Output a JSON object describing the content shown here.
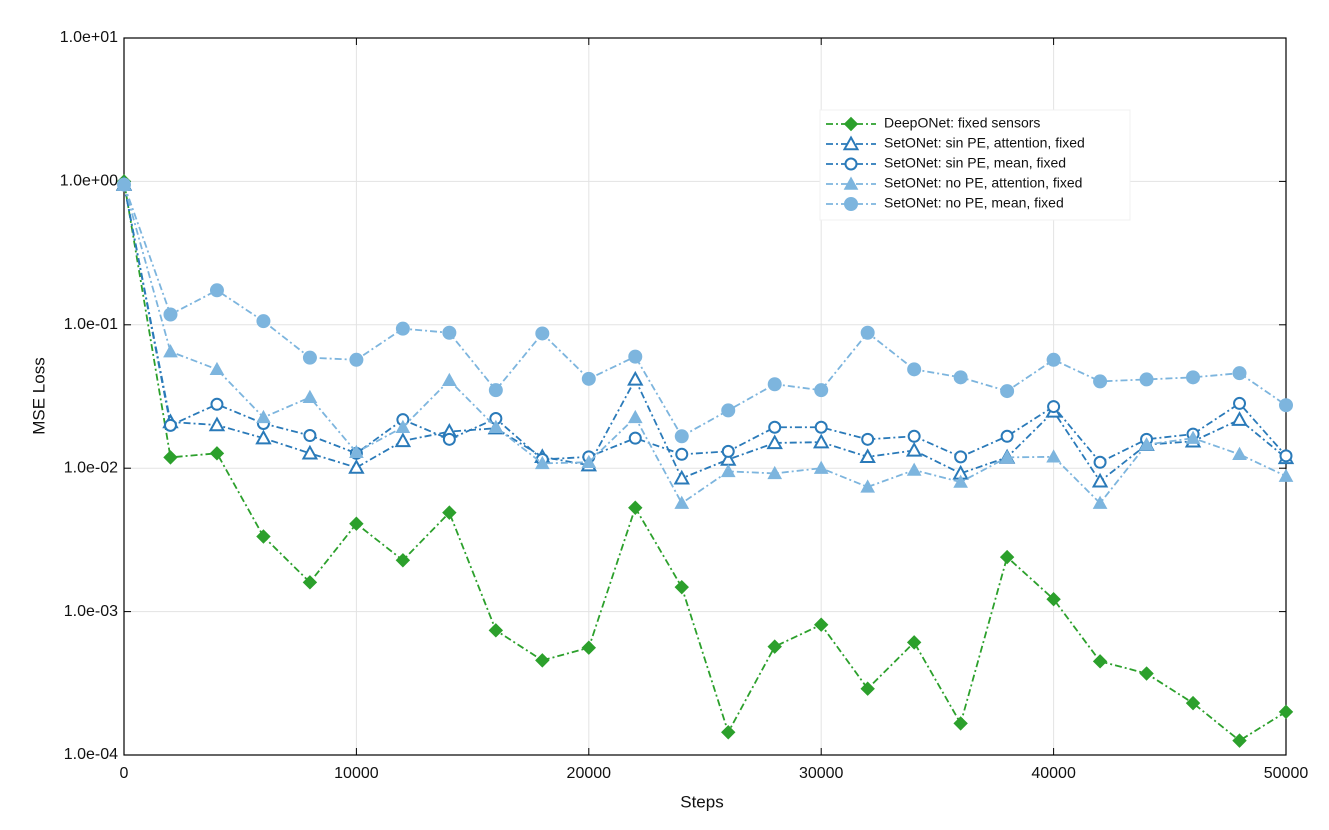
{
  "chart_data": {
    "type": "line",
    "xlabel": "Steps",
    "ylabel": "MSE Loss",
    "log_y": true,
    "grid": true,
    "legend": "upper right",
    "xlim": [
      0,
      50000
    ],
    "ylim": [
      0.0001,
      10
    ],
    "xticks": [
      0,
      10000,
      20000,
      30000,
      40000,
      50000
    ],
    "yticks": [
      {
        "value": 0.0001,
        "label": "1.0e-04"
      },
      {
        "value": 0.001,
        "label": "1.0e-03"
      },
      {
        "value": 0.01,
        "label": "1.0e-02"
      },
      {
        "value": 0.1,
        "label": "1.0e-01"
      },
      {
        "value": 1,
        "label": "1.0e+00"
      },
      {
        "value": 10,
        "label": "1.0e+01"
      }
    ],
    "x": [
      0,
      2000,
      4000,
      6000,
      8000,
      10000,
      12000,
      14000,
      16000,
      18000,
      20000,
      22000,
      24000,
      26000,
      28000,
      30000,
      32000,
      34000,
      36000,
      38000,
      40000,
      42000,
      44000,
      46000,
      48000,
      50000
    ],
    "series": [
      {
        "name": "DeepONet: fixed sensors",
        "color": "#2ca02c",
        "marker": "diamond",
        "values": [
          1.0,
          0.0119,
          0.0127,
          0.00334,
          0.0016,
          0.0041,
          0.00228,
          0.0049,
          0.00074,
          0.000457,
          0.00056,
          0.0053,
          0.00148,
          0.000144,
          0.00057,
          0.00081,
          0.00029,
          0.00061,
          0.000166,
          0.0024,
          0.00122,
          0.00045,
          0.00037,
          0.00023,
          0.000126,
          0.0002
        ]
      },
      {
        "name": "SetONet: sin PE, attention, fixed",
        "color": "#2a7ab9",
        "marker": "triangle-open",
        "values": [
          0.95,
          0.021,
          0.02,
          0.0162,
          0.0127,
          0.0101,
          0.0155,
          0.018,
          0.019,
          0.012,
          0.0105,
          0.0416,
          0.0085,
          0.0115,
          0.015,
          0.0152,
          0.012,
          0.0133,
          0.0092,
          0.0119,
          0.0249,
          0.0081,
          0.0146,
          0.0154,
          0.0218,
          0.0118
        ]
      },
      {
        "name": "SetONet: sin PE, mean, fixed",
        "color": "#2a7ab9",
        "marker": "circle-open",
        "values": [
          0.95,
          0.0199,
          0.0279,
          0.0205,
          0.0169,
          0.0127,
          0.0218,
          0.0159,
          0.0222,
          0.0115,
          0.012,
          0.0162,
          0.0125,
          0.0131,
          0.0193,
          0.0193,
          0.0159,
          0.0167,
          0.012,
          0.0167,
          0.0269,
          0.011,
          0.0159,
          0.0173,
          0.0283,
          0.0122
        ]
      },
      {
        "name": "SetONet: no PE, attention, fixed",
        "color": "#7db5de",
        "marker": "triangle",
        "values": [
          0.95,
          0.065,
          0.0489,
          0.0226,
          0.0312,
          0.0129,
          0.0193,
          0.041,
          0.0193,
          0.0108,
          0.011,
          0.0226,
          0.0057,
          0.0095,
          0.0092,
          0.01,
          0.0074,
          0.0097,
          0.008,
          0.0119,
          0.012,
          0.0057,
          0.0146,
          0.0162,
          0.0125,
          0.0088
        ]
      },
      {
        "name": "SetONet: no PE, mean, fixed",
        "color": "#7db5de",
        "marker": "circle",
        "values": [
          0.95,
          0.118,
          0.174,
          0.106,
          0.059,
          0.057,
          0.094,
          0.088,
          0.035,
          0.087,
          0.042,
          0.06,
          0.0167,
          0.0253,
          0.0385,
          0.035,
          0.088,
          0.0489,
          0.043,
          0.0345,
          0.057,
          0.0403,
          0.0416,
          0.043,
          0.046,
          0.0275
        ]
      }
    ]
  }
}
